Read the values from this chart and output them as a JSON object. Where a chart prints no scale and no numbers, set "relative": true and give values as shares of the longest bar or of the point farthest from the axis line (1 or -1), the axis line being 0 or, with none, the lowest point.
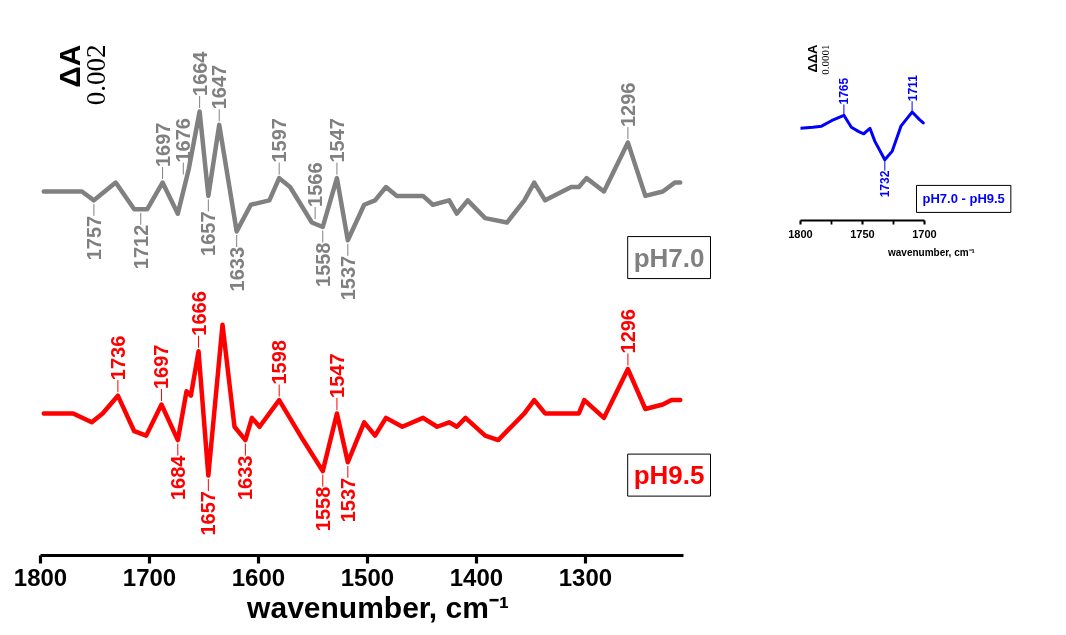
{
  "chart_data": [
    {
      "type": "line",
      "relative": true,
      "xlabel": "wavenumber, cm⁻¹",
      "xlim": [
        1800,
        1210
      ],
      "xticks": [
        1800,
        1700,
        1600,
        1500,
        1400,
        1300
      ],
      "grid": false,
      "series": [
        {
          "name": "pH7.0",
          "color": "#808080",
          "x": [
            1797,
            1765,
            1762,
            1751,
            1731,
            1714,
            1702,
            1688,
            1674,
            1664,
            1654,
            1646,
            1636,
            1620,
            1607,
            1590,
            1581,
            1571,
            1551,
            1541,
            1528,
            1518,
            1503,
            1493,
            1483,
            1473,
            1449,
            1440,
            1425,
            1418,
            1408,
            1392,
            1372,
            1356,
            1347,
            1337,
            1313,
            1306,
            1299,
            1283,
            1261,
            1245,
            1229,
            1218,
            1213
          ],
          "values": [
            0.82,
            0.82,
            0.82,
            0.8,
            0.84,
            0.78,
            0.78,
            0.84,
            0.77,
            0.87,
            1.0,
            0.81,
            0.97,
            0.73,
            0.79,
            0.8,
            0.85,
            0.83,
            0.75,
            0.74,
            0.85,
            0.71,
            0.79,
            0.8,
            0.83,
            0.81,
            0.81,
            0.79,
            0.8,
            0.77,
            0.8,
            0.76,
            0.75,
            0.8,
            0.84,
            0.8,
            0.83,
            0.83,
            0.85,
            0.82,
            0.93,
            0.81,
            0.82,
            0.84,
            0.84
          ]
        },
        {
          "name": "pH9.5",
          "color": "#ff0000",
          "x": [
            1797,
            1770,
            1753,
            1743,
            1729,
            1714,
            1703,
            1689,
            1674,
            1666,
            1662,
            1655,
            1646,
            1633,
            1622,
            1612,
            1606,
            1599,
            1581,
            1559,
            1541,
            1528,
            1518,
            1503,
            1493,
            1483,
            1468,
            1449,
            1436,
            1425,
            1418,
            1410,
            1392,
            1380,
            1356,
            1347,
            1337,
            1316,
            1306,
            1301,
            1283,
            1261,
            1245,
            1229,
            1221,
            1213
          ],
          "values": [
            0.32,
            0.32,
            0.3,
            0.32,
            0.36,
            0.28,
            0.27,
            0.34,
            0.26,
            0.37,
            0.36,
            0.46,
            0.18,
            0.52,
            0.29,
            0.26,
            0.31,
            0.29,
            0.35,
            0.26,
            0.19,
            0.32,
            0.21,
            0.3,
            0.27,
            0.31,
            0.29,
            0.31,
            0.29,
            0.3,
            0.29,
            0.31,
            0.27,
            0.26,
            0.32,
            0.35,
            0.32,
            0.32,
            0.32,
            0.35,
            0.31,
            0.42,
            0.33,
            0.34,
            0.35,
            0.35
          ]
        }
      ],
      "annotations": [
        "ΔA",
        "0.002",
        {
          "text": "1757",
          "x": 1751,
          "y": 0.8
        },
        {
          "text": "1712",
          "x": 1708,
          "y": 0.78
        },
        {
          "text": "1697",
          "x": 1688,
          "y": 0.84
        },
        {
          "text": "1676",
          "x": 1669,
          "y": 0.85
        },
        {
          "text": "1664",
          "x": 1654,
          "y": 1.0
        },
        {
          "text": "1657",
          "x": 1646,
          "y": 0.81
        },
        {
          "text": "1647",
          "x": 1636,
          "y": 0.97
        },
        {
          "text": "1633",
          "x": 1620,
          "y": 0.73
        },
        {
          "text": "1597",
          "x": 1581,
          "y": 0.85
        },
        {
          "text": "1566",
          "x": 1548,
          "y": 0.75
        },
        {
          "text": "1558",
          "x": 1541,
          "y": 0.74
        },
        {
          "text": "1547",
          "x": 1528,
          "y": 0.85
        },
        {
          "text": "1537",
          "x": 1518,
          "y": 0.71
        },
        {
          "text": "1296",
          "x": 1261,
          "y": 0.93
        },
        {
          "text": "1736",
          "x": 1729,
          "y": 0.36
        },
        {
          "text": "1697",
          "x": 1689,
          "y": 0.34
        },
        {
          "text": "1684",
          "x": 1674,
          "y": 0.26
        },
        {
          "text": "1666",
          "x": 1655,
          "y": 0.46
        },
        {
          "text": "1657",
          "x": 1646,
          "y": 0.18
        },
        {
          "text": "1633",
          "x": 1612,
          "y": 0.26
        },
        {
          "text": "1598",
          "x": 1581,
          "y": 0.35
        },
        {
          "text": "1558",
          "x": 1541,
          "y": 0.19
        },
        {
          "text": "1547",
          "x": 1528,
          "y": 0.32
        },
        {
          "text": "1537",
          "x": 1518,
          "y": 0.21
        },
        {
          "text": "1296",
          "x": 1261,
          "y": 0.42
        }
      ]
    },
    {
      "type": "line",
      "relative": true,
      "xlabel": "wavenumber, cm⁻¹",
      "xlim": [
        1800,
        1700
      ],
      "xticks": [
        1800,
        {
          "value": 1775,
          "label": null
        },
        1750,
        {
          "value": 1725,
          "label": null
        },
        1700
      ],
      "grid": false,
      "series": [
        {
          "name": "pH7.0 - pH9.5",
          "color": "#0000ff",
          "x": [
            1800,
            1790,
            1783,
            1775,
            1765,
            1759,
            1753,
            1749,
            1744,
            1740,
            1732,
            1726,
            1719,
            1710,
            1704,
            1701
          ],
          "values": [
            0.85,
            0.86,
            0.87,
            0.92,
            0.97,
            0.86,
            0.82,
            0.8,
            0.85,
            0.73,
            0.56,
            0.64,
            0.87,
            1.0,
            0.93,
            0.9
          ]
        }
      ],
      "annotations": [
        "ΔΔA",
        "0.0001",
        {
          "text": "1765",
          "x": 1765,
          "y": 0.97
        },
        {
          "text": "1732",
          "x": 1732,
          "y": 0.56
        },
        {
          "text": "1711",
          "x": 1710,
          "y": 1.0
        }
      ]
    }
  ]
}
